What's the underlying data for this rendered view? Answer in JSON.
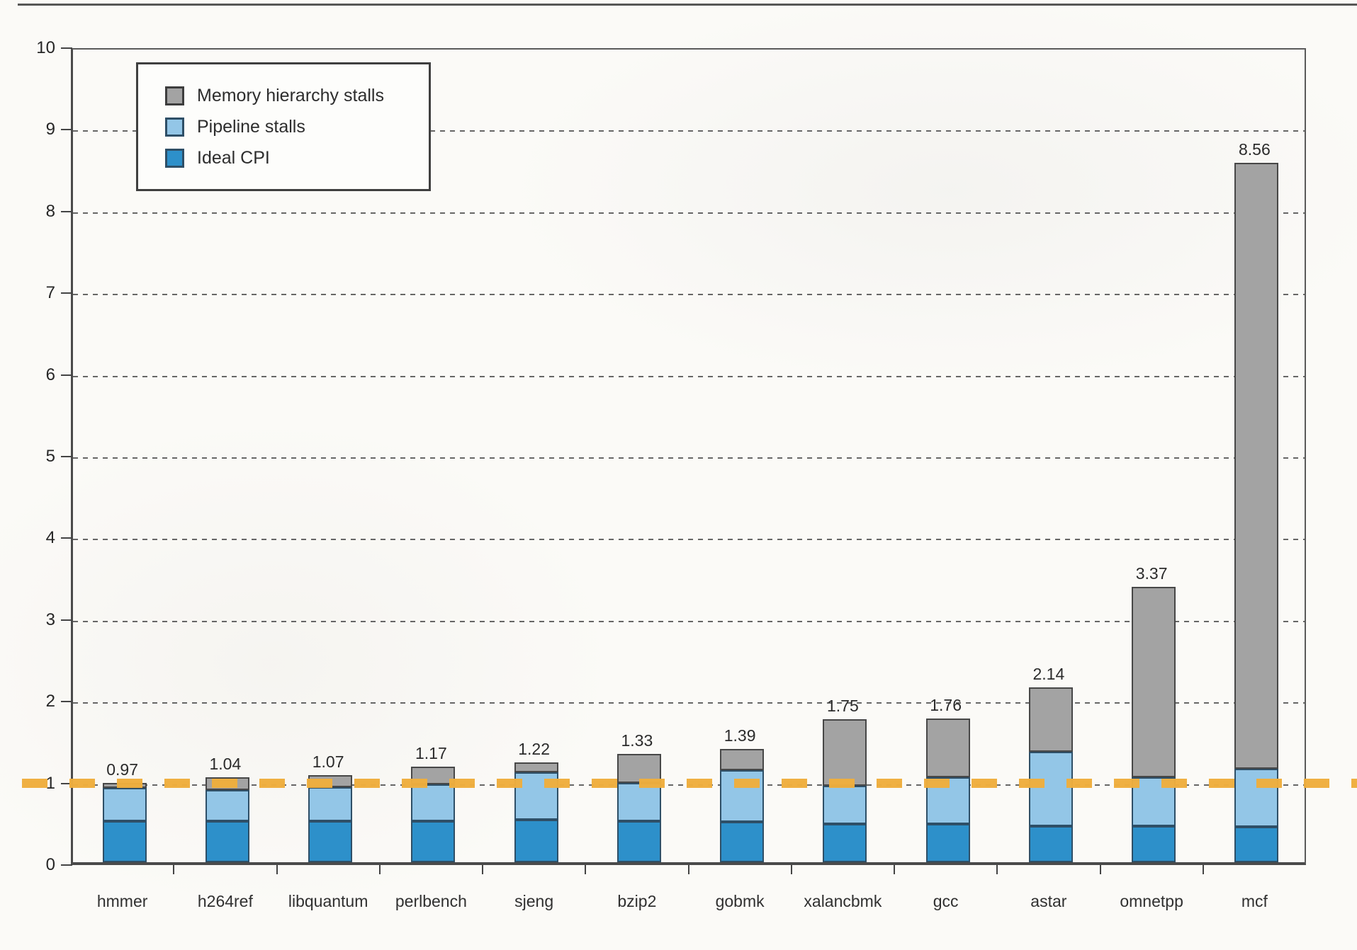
{
  "figure": {
    "background_color": "#fbfaf7",
    "annotation_line_color": "#efae3d"
  },
  "chart_data": {
    "type": "bar",
    "stacked": true,
    "title": "",
    "xlabel": "",
    "ylabel": "",
    "categories": [
      "hmmer",
      "h264ref",
      "libquantum",
      "perlbench",
      "sjeng",
      "bzip2",
      "gobmk",
      "xalancbmk",
      "gcc",
      "astar",
      "omnetpp",
      "mcf"
    ],
    "series": [
      {
        "name": "Ideal CPI",
        "color": "#2d90ca",
        "values": [
          0.5,
          0.5,
          0.5,
          0.5,
          0.52,
          0.5,
          0.49,
          0.47,
          0.47,
          0.44,
          0.44,
          0.43
        ]
      },
      {
        "name": "Pipeline stalls",
        "color": "#93c6e7",
        "values": [
          0.41,
          0.38,
          0.42,
          0.45,
          0.58,
          0.47,
          0.64,
          0.47,
          0.57,
          0.91,
          0.6,
          0.71
        ]
      },
      {
        "name": "Memory hierarchy stalls",
        "color": "#a3a3a3",
        "values": [
          0.06,
          0.16,
          0.15,
          0.22,
          0.12,
          0.36,
          0.26,
          0.81,
          0.72,
          0.79,
          2.33,
          7.42
        ]
      }
    ],
    "total_labels": [
      "0.97",
      "1.04",
      "1.07",
      "1.17",
      "1.22",
      "1.33",
      "1.39",
      "1.75",
      "1.76",
      "2.14",
      "3.37",
      "8.56"
    ],
    "ylim": [
      0,
      10
    ],
    "yticks": [
      "0",
      "1",
      "2",
      "3",
      "4",
      "5",
      "6",
      "7",
      "8",
      "9",
      "10"
    ],
    "grid": "horizontal-dashed",
    "legend_position": "top-left",
    "legend_order": [
      "Memory hierarchy stalls",
      "Pipeline stalls",
      "Ideal CPI"
    ],
    "annotations": [
      {
        "type": "horizontal-dashed-line",
        "y": 1,
        "color": "#efae3d"
      }
    ]
  }
}
